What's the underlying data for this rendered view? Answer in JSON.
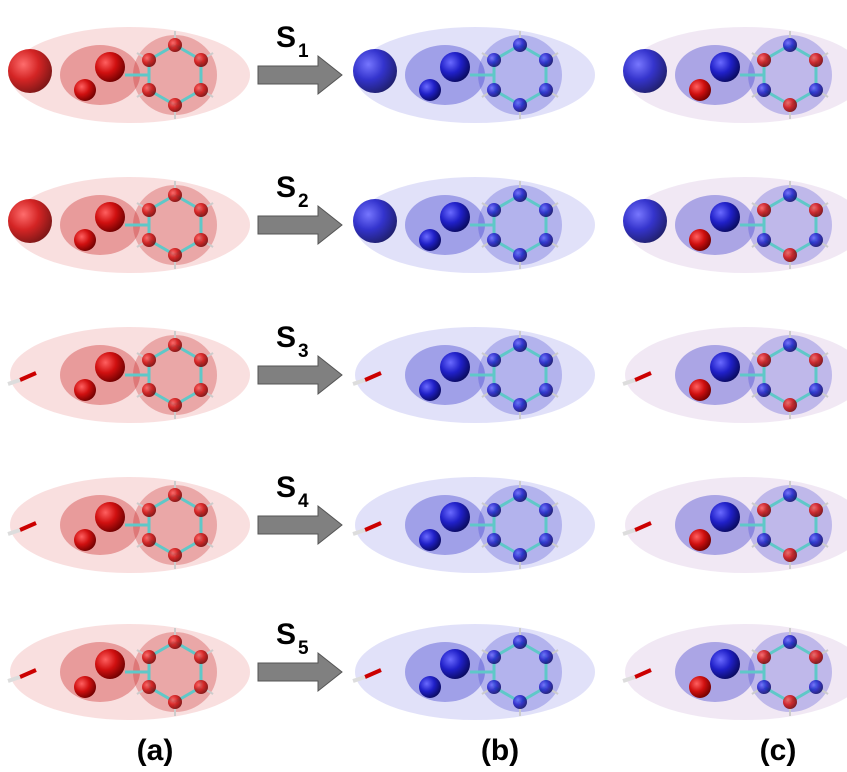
{
  "rows": [
    {
      "label": "S",
      "subscript": "1"
    },
    {
      "label": "S",
      "subscript": "2"
    },
    {
      "label": "S",
      "subscript": "3"
    },
    {
      "label": "S",
      "subscript": "4"
    },
    {
      "label": "S",
      "subscript": "5"
    }
  ],
  "columns": [
    "(a)",
    "(b)",
    "(c)"
  ]
}
